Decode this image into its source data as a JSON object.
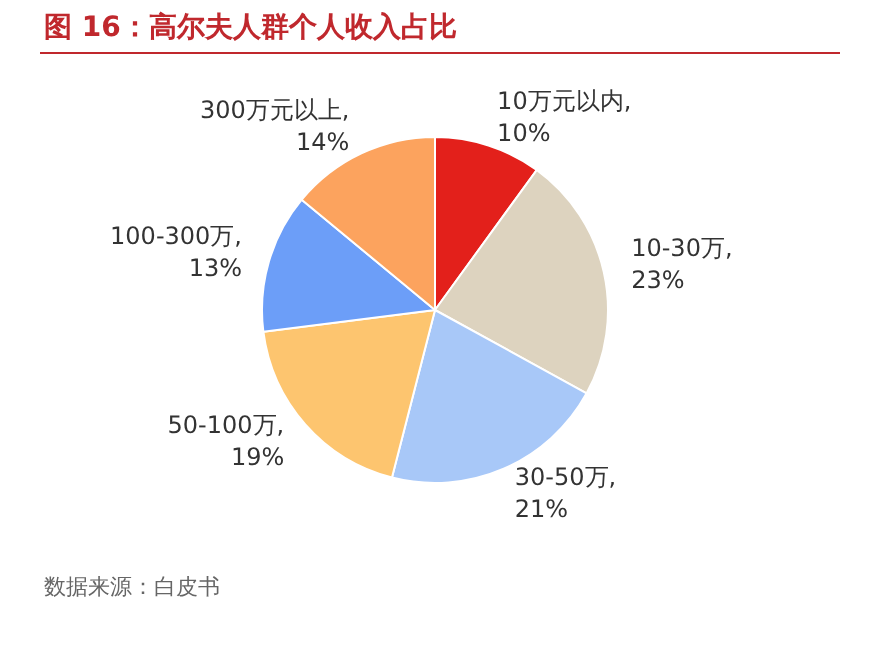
{
  "chart_data": {
    "type": "pie",
    "title": "图 16：高尔夫人群个人收入占比",
    "categories": [
      "10万元以内",
      "10-30万",
      "30-50万",
      "50-100万",
      "100-300万",
      "300万元以上"
    ],
    "values": [
      10,
      23,
      21,
      19,
      13,
      14
    ],
    "value_labels": [
      ", 10%",
      ", 23%",
      ", 21%",
      ", 19%",
      ", 13%",
      ", 14%"
    ],
    "colors": [
      "#e3201b",
      "#ddd3bf",
      "#a8c8f8",
      "#fdc56f",
      "#6c9ef8",
      "#fca35e"
    ],
    "legend": false,
    "annotations": [
      "数据来源：白皮书"
    ]
  }
}
